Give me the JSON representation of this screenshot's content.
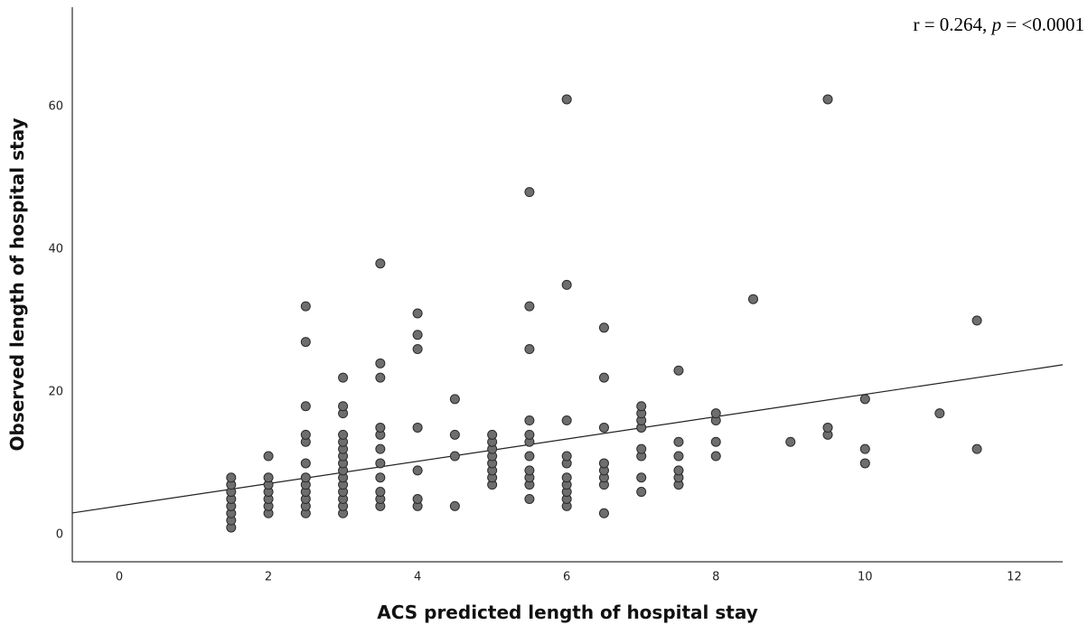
{
  "chart_data": {
    "type": "scatter",
    "x_label": "ACS predicted length of hospital stay",
    "y_label": "Observed length of hospital stay",
    "annotation": {
      "before": "r = 0.264, ",
      "italic": "p",
      "after": " = <0.0001"
    },
    "x": [
      1.5,
      1.5,
      1.5,
      1.5,
      1.5,
      1.5,
      1.5,
      1.5,
      2,
      2,
      2,
      2,
      2,
      2,
      2,
      2.5,
      2.5,
      2.5,
      2.5,
      2.5,
      2.5,
      2.5,
      2.5,
      2.5,
      2.5,
      2.5,
      2.5,
      3,
      3,
      3,
      3,
      3,
      3,
      3,
      3,
      3,
      3,
      3,
      3,
      3,
      3,
      3,
      3.5,
      3.5,
      3.5,
      3.5,
      3.5,
      3.5,
      3.5,
      3.5,
      3.5,
      3.5,
      3.5,
      4,
      4,
      4,
      4,
      4,
      4,
      4,
      4.5,
      4.5,
      4.5,
      4.5,
      5,
      5,
      5,
      5,
      5,
      5,
      5,
      5,
      5.5,
      5.5,
      5.5,
      5.5,
      5.5,
      5.5,
      5.5,
      5.5,
      5.5,
      5.5,
      5.5,
      6,
      6,
      6,
      6,
      6,
      6,
      6,
      6,
      6,
      6,
      6.5,
      6.5,
      6.5,
      6.5,
      6.5,
      6.5,
      6.5,
      6.5,
      7,
      7,
      7,
      7,
      7,
      7,
      7,
      7,
      7.5,
      7.5,
      7.5,
      7.5,
      7.5,
      7.5,
      8,
      8,
      8,
      8,
      8.5,
      9,
      9.5,
      9.5,
      9.5,
      10,
      10,
      10,
      11,
      11.5,
      11.5
    ],
    "values": [
      1,
      2,
      3,
      4,
      5,
      6,
      7,
      8,
      3,
      4,
      5,
      6,
      7,
      8,
      11,
      3,
      4,
      5,
      6,
      7,
      8,
      10,
      13,
      14,
      18,
      27,
      32,
      3,
      4,
      5,
      6,
      7,
      8,
      9,
      10,
      11,
      12,
      13,
      14,
      17,
      18,
      22,
      4,
      5,
      6,
      8,
      10,
      12,
      14,
      15,
      22,
      24,
      38,
      4,
      5,
      9,
      15,
      26,
      28,
      31,
      4,
      11,
      14,
      19,
      7,
      8,
      9,
      10,
      11,
      12,
      13,
      14,
      5,
      7,
      8,
      9,
      11,
      13,
      14,
      16,
      26,
      32,
      48,
      4,
      5,
      6,
      7,
      8,
      10,
      11,
      16,
      35,
      61,
      3,
      7,
      8,
      9,
      10,
      15,
      22,
      29,
      6,
      8,
      11,
      12,
      15,
      16,
      17,
      18,
      7,
      8,
      9,
      11,
      13,
      23,
      11,
      13,
      16,
      17,
      33,
      13,
      14,
      15,
      61,
      10,
      12,
      19,
      17,
      12,
      30
    ],
    "color": "#6e6e6e",
    "trend_line": {
      "x": [
        -0.63,
        12.65
      ],
      "y": [
        3.04,
        23.8
      ]
    },
    "xlim": [
      -0.63,
      12.65
    ],
    "ylim": [
      -3.8,
      73.9
    ],
    "xticks": [
      0,
      2,
      4,
      6,
      8,
      10,
      12
    ],
    "yticks": [
      0,
      20,
      40,
      60
    ]
  }
}
